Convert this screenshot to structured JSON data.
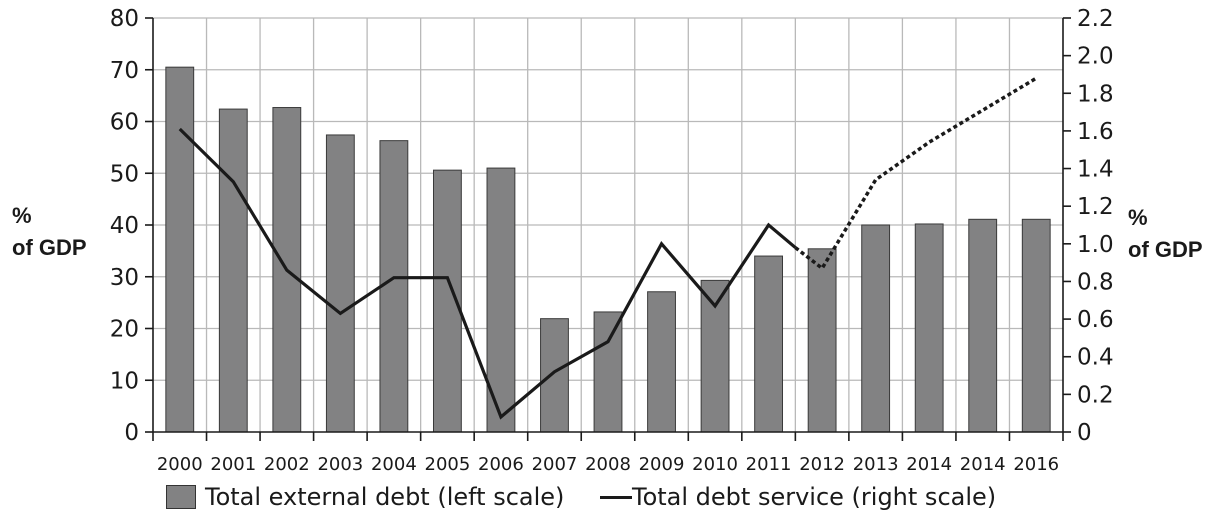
{
  "chart_data": {
    "type": "bar",
    "categories": [
      "2000",
      "2001",
      "2002",
      "2003",
      "2004",
      "2005",
      "2006",
      "2007",
      "2008",
      "2009",
      "2010",
      "2011",
      "2012",
      "2013",
      "2014",
      "2014",
      "2016"
    ],
    "series": [
      {
        "name": "Total external debt (left scale)",
        "type": "bar",
        "axis": "left",
        "color": "#828283",
        "values": [
          70.5,
          62.4,
          62.7,
          57.4,
          56.3,
          50.6,
          51.0,
          21.9,
          23.2,
          27.1,
          29.3,
          34.0,
          35.4,
          40.0,
          40.2,
          41.1,
          41.1
        ]
      },
      {
        "name": "Total debt service (right scale)",
        "type": "line",
        "axis": "right",
        "color": "#1a1a1a",
        "values": [
          1.61,
          1.33,
          0.86,
          0.63,
          0.82,
          0.82,
          0.08,
          0.32,
          0.48,
          1.0,
          0.67,
          1.1,
          0.87,
          1.34,
          1.54,
          1.71,
          1.88
        ],
        "solid_until_index": 11,
        "solid_end_partial": {
          "x_index": 11.5,
          "value": 0.98
        },
        "dotted_from": {
          "x_index": 11.5,
          "value": 0.98
        }
      }
    ],
    "y_left": {
      "label": [
        "%",
        "of GDP"
      ],
      "ylim": [
        0,
        80
      ],
      "ticks": [
        0,
        10,
        20,
        30,
        40,
        50,
        60,
        70,
        80
      ]
    },
    "y_right": {
      "label": [
        "%",
        "of GDP"
      ],
      "ylim": [
        0,
        2.2
      ],
      "ticks": [
        "0",
        "0.2",
        "0.4",
        "0.6",
        "0.8",
        "1.0",
        "1.2",
        "1.4",
        "1.6",
        "1.8",
        "2.0",
        "2.2"
      ]
    },
    "grid": true,
    "legend_position": "bottom"
  },
  "legend": {
    "bar_label": "Total external debt (left scale)",
    "line_label": "Total debt service (right scale)"
  }
}
